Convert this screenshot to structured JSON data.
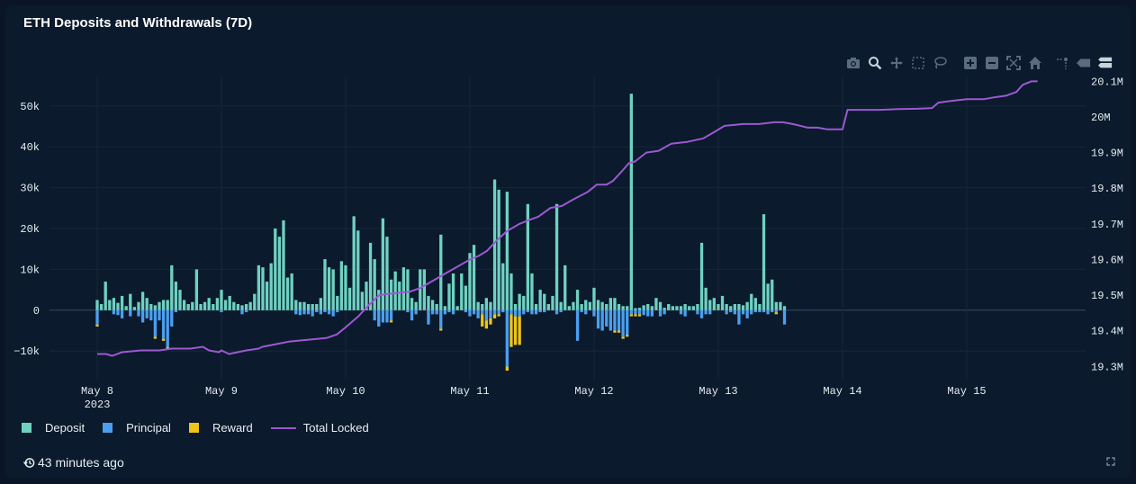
{
  "title": "ETH Deposits and Withdrawals (7D)",
  "updated": "43 minutes ago",
  "colors": {
    "deposit": "#6fd1c1",
    "principal": "#4a9ff0",
    "reward": "#f0c419",
    "total_locked": "#9b59d0",
    "grid": "#17263a",
    "tick": "#e6edf3"
  },
  "legend": [
    {
      "label": "Deposit",
      "kind": "box",
      "color": "#6fd1c1"
    },
    {
      "label": "Principal",
      "kind": "box",
      "color": "#4a9ff0"
    },
    {
      "label": "Reward",
      "kind": "box",
      "color": "#f0c419"
    },
    {
      "label": "Total Locked",
      "kind": "line",
      "color": "#9b59d0"
    }
  ],
  "modebar_icons": [
    "camera-icon",
    "zoom-icon",
    "pan-icon",
    "box-select-icon",
    "lasso-icon",
    "zoom-in-icon",
    "zoom-out-icon",
    "autoscale-icon",
    "reset-axes-icon",
    "spike-lines-icon",
    "hover-closest-icon",
    "hover-compare-icon"
  ],
  "chart_data": {
    "type": "bar",
    "grid": true,
    "legend_position": "bottom-left",
    "x_ticks": [
      {
        "day": 0,
        "label": "May 8",
        "sublabel": "2023"
      },
      {
        "day": 1,
        "label": "May 9",
        "sublabel": ""
      },
      {
        "day": 2,
        "label": "May 10",
        "sublabel": ""
      },
      {
        "day": 3,
        "label": "May 11",
        "sublabel": ""
      },
      {
        "day": 4,
        "label": "May 12",
        "sublabel": ""
      },
      {
        "day": 5,
        "label": "May 13",
        "sublabel": ""
      },
      {
        "day": 6,
        "label": "May 14",
        "sublabel": ""
      },
      {
        "day": 7,
        "label": "May 15",
        "sublabel": ""
      }
    ],
    "y_left": {
      "range": [
        -17000,
        57000
      ],
      "ticks": [
        -10000,
        0,
        10000,
        20000,
        30000,
        40000,
        50000
      ],
      "tick_labels": [
        "−10k",
        "0",
        "10k",
        "20k",
        "30k",
        "40k",
        "50k"
      ]
    },
    "y_right": {
      "range": [
        19.263,
        20.111
      ],
      "ticks": [
        19.3,
        19.4,
        19.5,
        19.6,
        19.7,
        19.8,
        19.9,
        20.0,
        20.1
      ],
      "tick_labels": [
        "19.3M",
        "19.4M",
        "19.5M",
        "19.6M",
        "19.7M",
        "19.8M",
        "19.9M",
        "20M",
        "20.1M"
      ]
    },
    "x_start_day": 0,
    "bar_step_days": 0.03333,
    "series": [
      {
        "name": "Deposit",
        "values": [
          2500,
          1500,
          7000,
          2500,
          3000,
          1800,
          3500,
          1000,
          4000,
          800,
          2000,
          4500,
          3000,
          1500,
          1200,
          2000,
          2500,
          2500,
          11000,
          7000,
          5000,
          2500,
          1500,
          2000,
          10000,
          1500,
          2000,
          3000,
          1500,
          3000,
          5000,
          2500,
          3500,
          2000,
          1500,
          1200,
          1500,
          2000,
          4000,
          11000,
          10500,
          7000,
          11500,
          20000,
          18000,
          22000,
          8000,
          9000,
          2500,
          2000,
          2000,
          1500,
          1500,
          1500,
          3000,
          12500,
          10500,
          10000,
          3500,
          12000,
          11000,
          5500,
          23000,
          19500,
          4500,
          7000,
          16500,
          12500,
          5000,
          22500,
          18000,
          7500,
          9500,
          7000,
          10500,
          10000,
          3000,
          2000,
          10000,
          10000,
          3500,
          2500,
          1500,
          18500,
          1000,
          6500,
          9000,
          1000,
          9000,
          6000,
          14000,
          16000,
          2000,
          1500,
          3000,
          2000,
          32000,
          29500,
          11500,
          29000,
          9000,
          1500,
          4000,
          3500,
          26000,
          9000,
          1500,
          5000,
          4000,
          1500,
          3500,
          26000,
          2000,
          11000,
          1000,
          2000,
          5000,
          1500,
          2500,
          2000,
          5500,
          2500,
          2000,
          1500,
          3000,
          3000,
          1500,
          1000,
          1000,
          53000,
          500,
          600,
          1200,
          1500,
          1000,
          3000,
          2000,
          600,
          1500,
          1000,
          1000,
          1000,
          1500,
          1000,
          1000,
          1500,
          16500,
          5500,
          2500,
          3000,
          1500,
          3500,
          1500,
          1000,
          1500,
          1500,
          1200,
          2000,
          4000,
          3000,
          1500,
          23500,
          6500,
          7500,
          2000,
          2000,
          1000
        ]
      },
      {
        "name": "Principal",
        "values": [
          -3500,
          0,
          0,
          0,
          -1000,
          -1200,
          -2000,
          0,
          -1500,
          0,
          -1500,
          -3000,
          -2000,
          -2500,
          -6500,
          -2500,
          -7000,
          -9000,
          -4000,
          -500,
          0,
          0,
          0,
          0,
          0,
          0,
          0,
          0,
          0,
          0,
          -500,
          0,
          0,
          0,
          0,
          -1000,
          -500,
          0,
          0,
          0,
          0,
          0,
          0,
          0,
          0,
          0,
          0,
          0,
          -1000,
          -1200,
          -1000,
          -1000,
          -1500,
          -500,
          -1000,
          -500,
          -1000,
          -1500,
          -500,
          0,
          0,
          0,
          0,
          0,
          0,
          0,
          0,
          -2500,
          -4000,
          -3000,
          -3000,
          -2500,
          0,
          0,
          0,
          -500,
          -2500,
          -1000,
          0,
          0,
          -3500,
          -1000,
          -1000,
          -4500,
          -1000,
          -500,
          -1000,
          0,
          0,
          -500,
          -1500,
          -1000,
          -2000,
          -1000,
          -2500,
          -2000,
          -1000,
          -1000,
          -500,
          -13800,
          -1000,
          -1500,
          -1500,
          -1000,
          -500,
          -1000,
          -1000,
          -500,
          -500,
          0,
          0,
          -1000,
          -500,
          0,
          0,
          0,
          -7500,
          -500,
          -1000,
          0,
          -1500,
          -4500,
          -5000,
          -4000,
          -5000,
          -5000,
          -5000,
          -6500,
          -6000,
          -1000,
          -1000,
          -1000,
          -1200,
          -1500,
          -1500,
          0,
          -1500,
          -1000,
          0,
          0,
          0,
          -1000,
          -1500,
          0,
          0,
          -1000,
          -2000,
          -1000,
          -1000,
          0,
          0,
          0,
          -1000,
          -500,
          -1000,
          -3500,
          -1000,
          -2000,
          -1000,
          -500,
          -500,
          -500,
          -1000,
          -500,
          -500,
          0,
          -3500,
          -500,
          0,
          0,
          -500,
          -500,
          -500
        ]
      },
      {
        "name": "Reward",
        "values": [
          -500,
          0,
          0,
          0,
          0,
          0,
          0,
          0,
          0,
          0,
          0,
          0,
          0,
          0,
          -500,
          0,
          -500,
          -500,
          0,
          0,
          0,
          0,
          0,
          0,
          0,
          0,
          0,
          0,
          0,
          0,
          0,
          0,
          0,
          0,
          0,
          0,
          0,
          0,
          0,
          0,
          0,
          0,
          0,
          0,
          0,
          0,
          0,
          0,
          0,
          0,
          0,
          0,
          0,
          0,
          0,
          0,
          0,
          0,
          0,
          0,
          0,
          0,
          0,
          0,
          0,
          0,
          0,
          0,
          0,
          0,
          0,
          -500,
          0,
          0,
          0,
          0,
          0,
          0,
          0,
          0,
          0,
          0,
          0,
          -500,
          0,
          0,
          0,
          0,
          0,
          0,
          0,
          0,
          0,
          -3000,
          -2000,
          -1500,
          -1000,
          -500,
          0,
          -1000,
          -8000,
          -7000,
          -7000,
          0,
          0,
          0,
          0,
          0,
          0,
          0,
          0,
          0,
          0,
          0,
          0,
          0,
          0,
          0,
          0,
          0,
          0,
          0,
          0,
          0,
          0,
          -500,
          -500,
          -500,
          -500,
          -500,
          -500,
          -500,
          0,
          0,
          0,
          0,
          0,
          0,
          0,
          0,
          0,
          0,
          0,
          0,
          0,
          0,
          0,
          0,
          0,
          0,
          0,
          0,
          0,
          0,
          0,
          0,
          0,
          0,
          0,
          0,
          0,
          0,
          0,
          0,
          -500,
          0,
          0,
          0,
          0,
          0,
          0,
          0,
          0,
          0,
          0,
          0,
          0,
          0,
          0,
          0,
          0,
          0
        ]
      },
      {
        "name": "Total Locked",
        "axis": "right",
        "unit": "M",
        "points": [
          [
            0,
            19.335
          ],
          [
            0.07,
            19.335
          ],
          [
            0.12,
            19.33
          ],
          [
            0.2,
            19.34
          ],
          [
            0.35,
            19.345
          ],
          [
            0.5,
            19.345
          ],
          [
            0.6,
            19.35
          ],
          [
            0.75,
            19.35
          ],
          [
            0.85,
            19.355
          ],
          [
            0.9,
            19.345
          ],
          [
            0.98,
            19.34
          ],
          [
            1.0,
            19.345
          ],
          [
            1.06,
            19.335
          ],
          [
            1.2,
            19.345
          ],
          [
            1.3,
            19.35
          ],
          [
            1.33,
            19.355
          ],
          [
            1.4,
            19.36
          ],
          [
            1.55,
            19.37
          ],
          [
            1.7,
            19.375
          ],
          [
            1.85,
            19.38
          ],
          [
            1.93,
            19.39
          ],
          [
            2.0,
            19.41
          ],
          [
            2.1,
            19.44
          ],
          [
            2.18,
            19.47
          ],
          [
            2.27,
            19.5
          ],
          [
            2.38,
            19.505
          ],
          [
            2.52,
            19.51
          ],
          [
            2.6,
            19.52
          ],
          [
            2.7,
            19.54
          ],
          [
            2.8,
            19.56
          ],
          [
            2.9,
            19.58
          ],
          [
            3.0,
            19.6
          ],
          [
            3.07,
            19.61
          ],
          [
            3.14,
            19.625
          ],
          [
            3.22,
            19.655
          ],
          [
            3.3,
            19.68
          ],
          [
            3.4,
            19.7
          ],
          [
            3.47,
            19.71
          ],
          [
            3.55,
            19.72
          ],
          [
            3.65,
            19.745
          ],
          [
            3.74,
            19.75
          ],
          [
            3.84,
            19.77
          ],
          [
            3.95,
            19.79
          ],
          [
            4.02,
            19.81
          ],
          [
            4.1,
            19.81
          ],
          [
            4.15,
            19.82
          ],
          [
            4.23,
            19.85
          ],
          [
            4.28,
            19.87
          ],
          [
            4.33,
            19.875
          ],
          [
            4.42,
            19.9
          ],
          [
            4.52,
            19.905
          ],
          [
            4.62,
            19.925
          ],
          [
            4.75,
            19.93
          ],
          [
            4.88,
            19.94
          ],
          [
            4.98,
            19.96
          ],
          [
            5.05,
            19.975
          ],
          [
            5.2,
            19.98
          ],
          [
            5.33,
            19.98
          ],
          [
            5.45,
            19.985
          ],
          [
            5.52,
            19.985
          ],
          [
            5.6,
            19.98
          ],
          [
            5.72,
            19.97
          ],
          [
            5.8,
            19.97
          ],
          [
            5.88,
            19.965
          ],
          [
            5.96,
            19.965
          ],
          [
            6.0,
            19.965
          ],
          [
            6.04,
            20.02
          ],
          [
            6.3,
            20.02
          ],
          [
            6.45,
            20.022
          ],
          [
            6.6,
            20.023
          ],
          [
            6.72,
            20.025
          ],
          [
            6.77,
            20.04
          ],
          [
            6.87,
            20.045
          ],
          [
            7.0,
            20.05
          ],
          [
            7.14,
            20.05
          ],
          [
            7.22,
            20.055
          ],
          [
            7.32,
            20.06
          ],
          [
            7.4,
            20.07
          ],
          [
            7.45,
            20.09
          ],
          [
            7.52,
            20.1
          ],
          [
            7.57,
            20.1
          ]
        ]
      }
    ]
  }
}
